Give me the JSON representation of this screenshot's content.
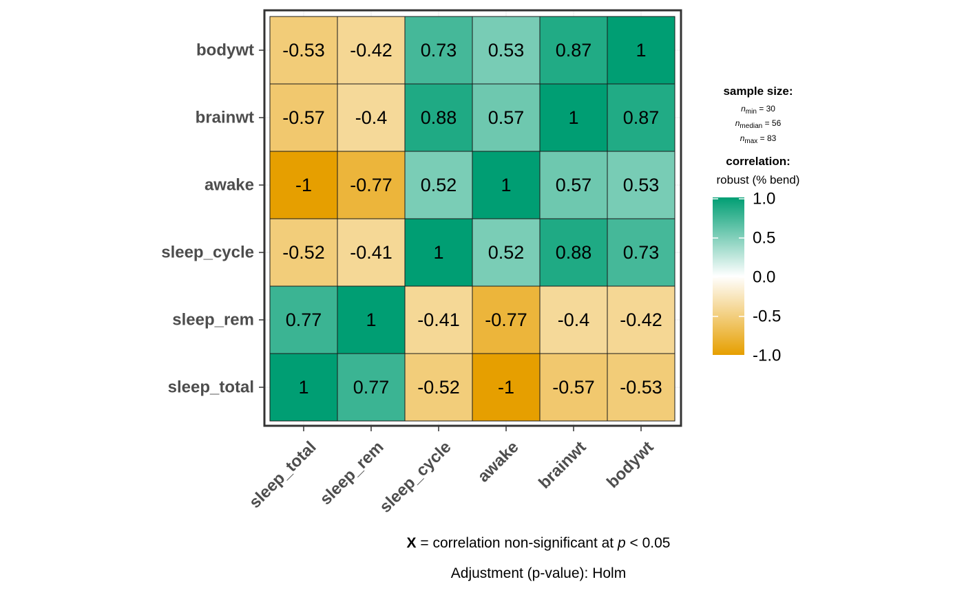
{
  "chart_data": {
    "type": "heatmap",
    "x_categories": [
      "sleep_total",
      "sleep_rem",
      "sleep_cycle",
      "awake",
      "brainwt",
      "bodywt"
    ],
    "y_categories": [
      "sleep_total",
      "sleep_rem",
      "sleep_cycle",
      "awake",
      "brainwt",
      "bodywt"
    ],
    "cells": [
      {
        "row": "bodywt",
        "values": [
          -0.53,
          -0.42,
          0.73,
          0.53,
          0.87,
          1
        ]
      },
      {
        "row": "brainwt",
        "values": [
          -0.57,
          -0.4,
          0.88,
          0.57,
          1,
          0.87
        ]
      },
      {
        "row": "awake",
        "values": [
          -1,
          -0.77,
          0.52,
          1,
          0.57,
          0.53
        ]
      },
      {
        "row": "sleep_cycle",
        "values": [
          -0.52,
          -0.41,
          1,
          0.52,
          0.88,
          0.73
        ]
      },
      {
        "row": "sleep_rem",
        "values": [
          0.77,
          1,
          -0.41,
          -0.77,
          -0.4,
          -0.42
        ]
      },
      {
        "row": "sleep_total",
        "values": [
          1,
          0.77,
          -0.52,
          -1,
          -0.57,
          -0.53
        ]
      }
    ],
    "color_scale": {
      "low": "#E69F00",
      "mid": "#FFFFFF",
      "high": "#009E73",
      "limits": [
        -1,
        1
      ],
      "breaks": [
        "1.0",
        "0.5",
        "0.0",
        "-0.5",
        "-1.0"
      ]
    },
    "legend": {
      "position": "right",
      "sample_size_title": "sample size:",
      "n_min": {
        "symbol": "n",
        "sub": "min",
        "value": " = 30"
      },
      "n_median": {
        "symbol": "n",
        "sub": "median",
        "value": " = 56"
      },
      "n_max": {
        "symbol": "n",
        "sub": "max",
        "value": " = 83"
      },
      "correlation_title": "correlation:",
      "correlation_method": "robust (% bend)"
    },
    "caption": {
      "line1_x": "X",
      "line1_rest": " = correlation non-significant at ",
      "line1_p": "p",
      "line1_end": " < 0.05",
      "line2": "Adjustment (p-value): Holm"
    }
  }
}
